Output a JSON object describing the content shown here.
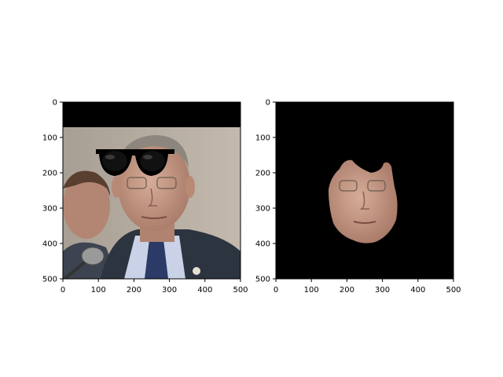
{
  "figure": {
    "background": "#ffffff",
    "description_note": ""
  },
  "chart_data": [
    {
      "type": "image",
      "title": "",
      "xlabel": "",
      "ylabel": "",
      "xlim": [
        0,
        500
      ],
      "ylim": [
        500,
        0
      ],
      "xticks": [
        0,
        100,
        200,
        300,
        400,
        500
      ],
      "yticks": [
        0,
        100,
        200,
        300,
        400,
        500
      ],
      "y_inverted": true,
      "grid": false,
      "content": "photo-with-sunglasses-overlay",
      "colors": {
        "top_band": "#000000",
        "background_wall": "#b7ada0",
        "suit": "#2c3440",
        "shirt": "#c9d2e6",
        "skin": "#c59a86",
        "hair": "#8c867e",
        "sunglasses": "#000000",
        "microphone": "#9a9a9a"
      }
    },
    {
      "type": "image",
      "title": "",
      "xlabel": "",
      "ylabel": "",
      "xlim": [
        0,
        500
      ],
      "ylim": [
        500,
        0
      ],
      "xticks": [
        0,
        100,
        200,
        300,
        400,
        500
      ],
      "yticks": [
        0,
        100,
        200,
        300,
        400,
        500
      ],
      "y_inverted": true,
      "grid": false,
      "content": "masked-face-on-black",
      "colors": {
        "background": "#000000",
        "skin": "#c59a86",
        "shadow": "#8e6a5a"
      }
    }
  ]
}
